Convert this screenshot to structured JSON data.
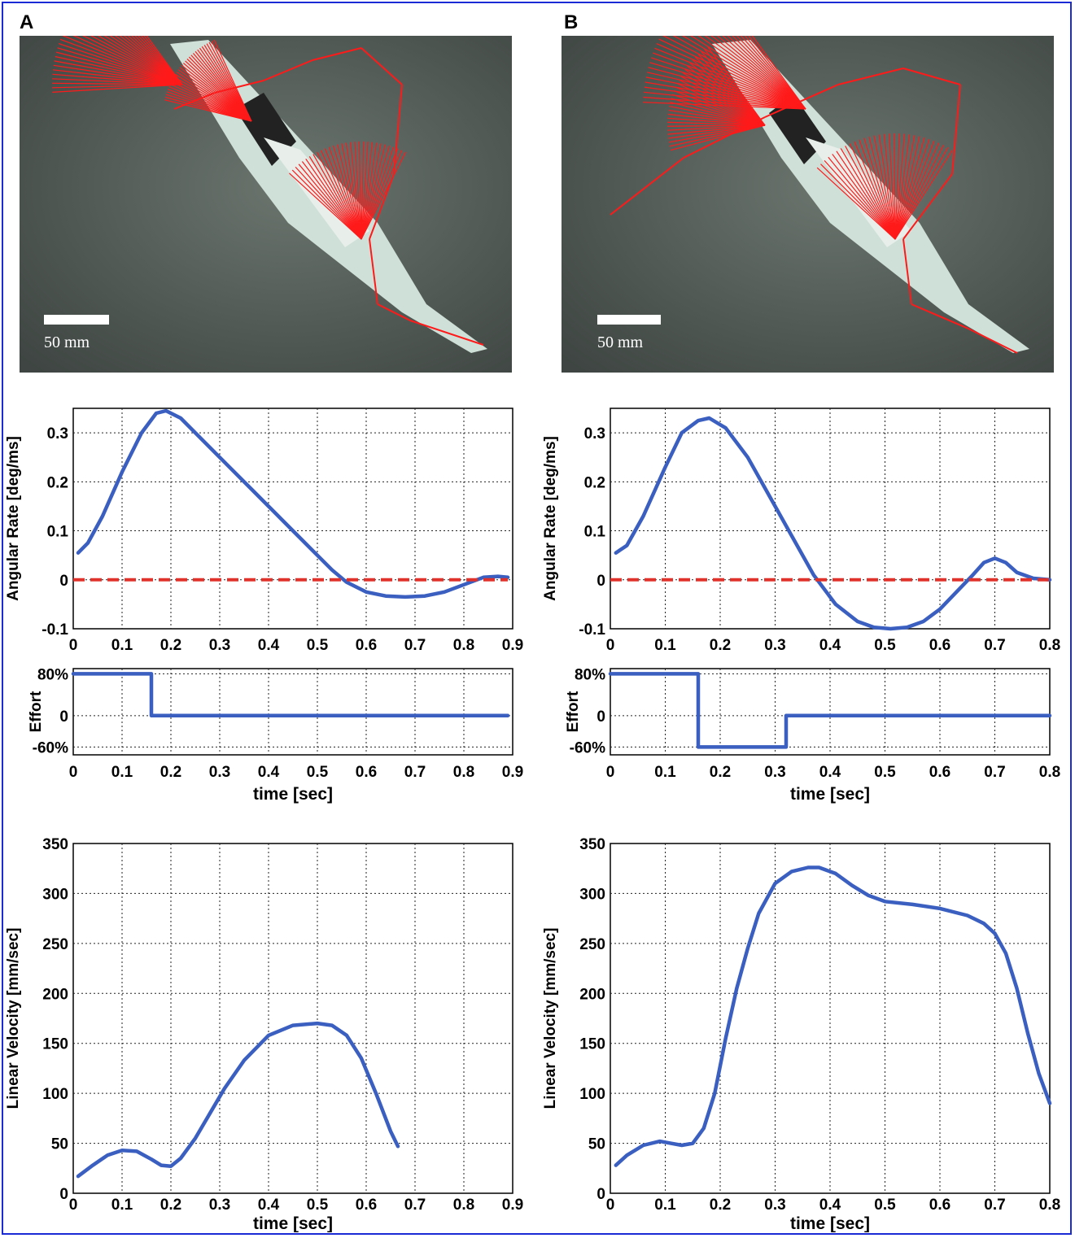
{
  "panels": [
    {
      "label": "A",
      "scale_label": "50 mm"
    },
    {
      "label": "B",
      "scale_label": "50 mm"
    }
  ],
  "colors": {
    "series": "#3a5fc0",
    "reference": "#e0322b",
    "frame": "#1a2bd6",
    "trace": "#ff1a1a"
  },
  "chart_data": [
    {
      "id": "A-angular",
      "type": "line",
      "xlabel": "",
      "ylabel": "Angular Rate [deg/ms]",
      "xlim": [
        0,
        0.9
      ],
      "ylim": [
        -0.1,
        0.35
      ],
      "grid": true,
      "xticks": [
        "0",
        "0.1",
        "0.2",
        "0.3",
        "0.4",
        "0.5",
        "0.6",
        "0.7",
        "0.8",
        "0.9"
      ],
      "yticks": [
        "-0.1",
        "0",
        "0.1",
        "0.2",
        "0.3"
      ],
      "series": [
        {
          "x": [
            0.01,
            0.03,
            0.06,
            0.1,
            0.14,
            0.17,
            0.19,
            0.22,
            0.27,
            0.32,
            0.37,
            0.42,
            0.46,
            0.5,
            0.53,
            0.56,
            0.6,
            0.64,
            0.68,
            0.72,
            0.76,
            0.8,
            0.84,
            0.87,
            0.89
          ],
          "y": [
            0.055,
            0.075,
            0.13,
            0.22,
            0.3,
            0.34,
            0.345,
            0.33,
            0.28,
            0.23,
            0.18,
            0.13,
            0.09,
            0.05,
            0.02,
            -0.005,
            -0.025,
            -0.033,
            -0.035,
            -0.033,
            -0.025,
            -0.01,
            0.005,
            0.007,
            0.005
          ]
        },
        {
          "x": [
            0,
            0.89
          ],
          "y": [
            0,
            0
          ],
          "style": "dashed"
        }
      ]
    },
    {
      "id": "A-effort",
      "type": "line",
      "xlabel": "time [sec]",
      "ylabel": "Effort",
      "xlim": [
        0,
        0.9
      ],
      "ylim": [
        -0.75,
        0.9
      ],
      "grid": true,
      "xticks": [
        "0",
        "0.1",
        "0.2",
        "0.3",
        "0.4",
        "0.5",
        "0.6",
        "0.7",
        "0.8",
        "0.9"
      ],
      "ytick_values": [
        0.8,
        0,
        -0.6
      ],
      "ytick_labels": [
        "80%",
        "0",
        "-60%"
      ],
      "series": [
        {
          "x": [
            0,
            0.16,
            0.16,
            0.89
          ],
          "y": [
            0.8,
            0.8,
            0,
            0
          ]
        }
      ]
    },
    {
      "id": "A-linear",
      "type": "line",
      "xlabel": "time [sec]",
      "ylabel": "Linear Velocity [mm/sec]",
      "xlim": [
        0,
        0.9
      ],
      "ylim": [
        0,
        350
      ],
      "grid": true,
      "xticks": [
        "0",
        "0.1",
        "0.2",
        "0.3",
        "0.4",
        "0.5",
        "0.6",
        "0.7",
        "0.8",
        "0.9"
      ],
      "yticks": [
        "0",
        "50",
        "100",
        "150",
        "200",
        "250",
        "300",
        "350"
      ],
      "series": [
        {
          "x": [
            0.01,
            0.04,
            0.07,
            0.1,
            0.13,
            0.16,
            0.18,
            0.2,
            0.22,
            0.25,
            0.28,
            0.31,
            0.35,
            0.4,
            0.45,
            0.5,
            0.53,
            0.56,
            0.59,
            0.62,
            0.65,
            0.665
          ],
          "y": [
            17,
            28,
            38,
            43,
            42,
            34,
            28,
            27,
            35,
            55,
            80,
            105,
            133,
            158,
            168,
            170,
            168,
            158,
            135,
            100,
            62,
            47
          ]
        }
      ]
    },
    {
      "id": "B-angular",
      "type": "line",
      "xlabel": "",
      "ylabel": "Angular Rate [deg/ms]",
      "xlim": [
        0,
        0.8
      ],
      "ylim": [
        -0.1,
        0.35
      ],
      "grid": true,
      "xticks": [
        "0",
        "0.1",
        "0.2",
        "0.3",
        "0.4",
        "0.5",
        "0.6",
        "0.7",
        "0.8"
      ],
      "yticks": [
        "-0.1",
        "0",
        "0.1",
        "0.2",
        "0.3"
      ],
      "series": [
        {
          "x": [
            0.01,
            0.03,
            0.06,
            0.1,
            0.13,
            0.16,
            0.18,
            0.21,
            0.25,
            0.29,
            0.33,
            0.37,
            0.41,
            0.45,
            0.48,
            0.51,
            0.54,
            0.57,
            0.6,
            0.63,
            0.66,
            0.68,
            0.7,
            0.72,
            0.74,
            0.77,
            0.8
          ],
          "y": [
            0.055,
            0.07,
            0.13,
            0.23,
            0.3,
            0.325,
            0.33,
            0.31,
            0.25,
            0.17,
            0.09,
            0.01,
            -0.05,
            -0.085,
            -0.097,
            -0.1,
            -0.097,
            -0.085,
            -0.06,
            -0.025,
            0.01,
            0.035,
            0.044,
            0.035,
            0.015,
            0.003,
            0
          ]
        },
        {
          "x": [
            0,
            0.8
          ],
          "y": [
            0,
            0
          ],
          "style": "dashed"
        }
      ]
    },
    {
      "id": "B-effort",
      "type": "line",
      "xlabel": "time [sec]",
      "ylabel": "Effort",
      "xlim": [
        0,
        0.8
      ],
      "ylim": [
        -0.75,
        0.9
      ],
      "grid": true,
      "xticks": [
        "0",
        "0.1",
        "0.2",
        "0.3",
        "0.4",
        "0.5",
        "0.6",
        "0.7",
        "0.8"
      ],
      "ytick_values": [
        0.8,
        0,
        -0.6
      ],
      "ytick_labels": [
        "80%",
        "0",
        "-60%"
      ],
      "series": [
        {
          "x": [
            0,
            0.16,
            0.16,
            0.32,
            0.32,
            0.8
          ],
          "y": [
            0.8,
            0.8,
            -0.6,
            -0.6,
            0,
            0
          ]
        }
      ]
    },
    {
      "id": "B-linear",
      "type": "line",
      "xlabel": "time [sec]",
      "ylabel": "Linear Velocity [mm/sec]",
      "xlim": [
        0,
        0.8
      ],
      "ylim": [
        0,
        350
      ],
      "grid": true,
      "xticks": [
        "0",
        "0.1",
        "0.2",
        "0.3",
        "0.4",
        "0.5",
        "0.6",
        "0.7",
        "0.8"
      ],
      "yticks": [
        "0",
        "50",
        "100",
        "150",
        "200",
        "250",
        "300",
        "350"
      ],
      "series": [
        {
          "x": [
            0.01,
            0.03,
            0.06,
            0.09,
            0.11,
            0.13,
            0.15,
            0.17,
            0.19,
            0.21,
            0.23,
            0.25,
            0.27,
            0.3,
            0.33,
            0.36,
            0.38,
            0.41,
            0.44,
            0.47,
            0.5,
            0.55,
            0.6,
            0.65,
            0.68,
            0.7,
            0.72,
            0.74,
            0.76,
            0.78,
            0.8
          ],
          "y": [
            28,
            38,
            48,
            52,
            50,
            48,
            50,
            65,
            100,
            155,
            205,
            245,
            280,
            310,
            322,
            326,
            326,
            320,
            308,
            298,
            292,
            289,
            285,
            278,
            270,
            260,
            240,
            205,
            160,
            120,
            90
          ]
        }
      ]
    }
  ]
}
